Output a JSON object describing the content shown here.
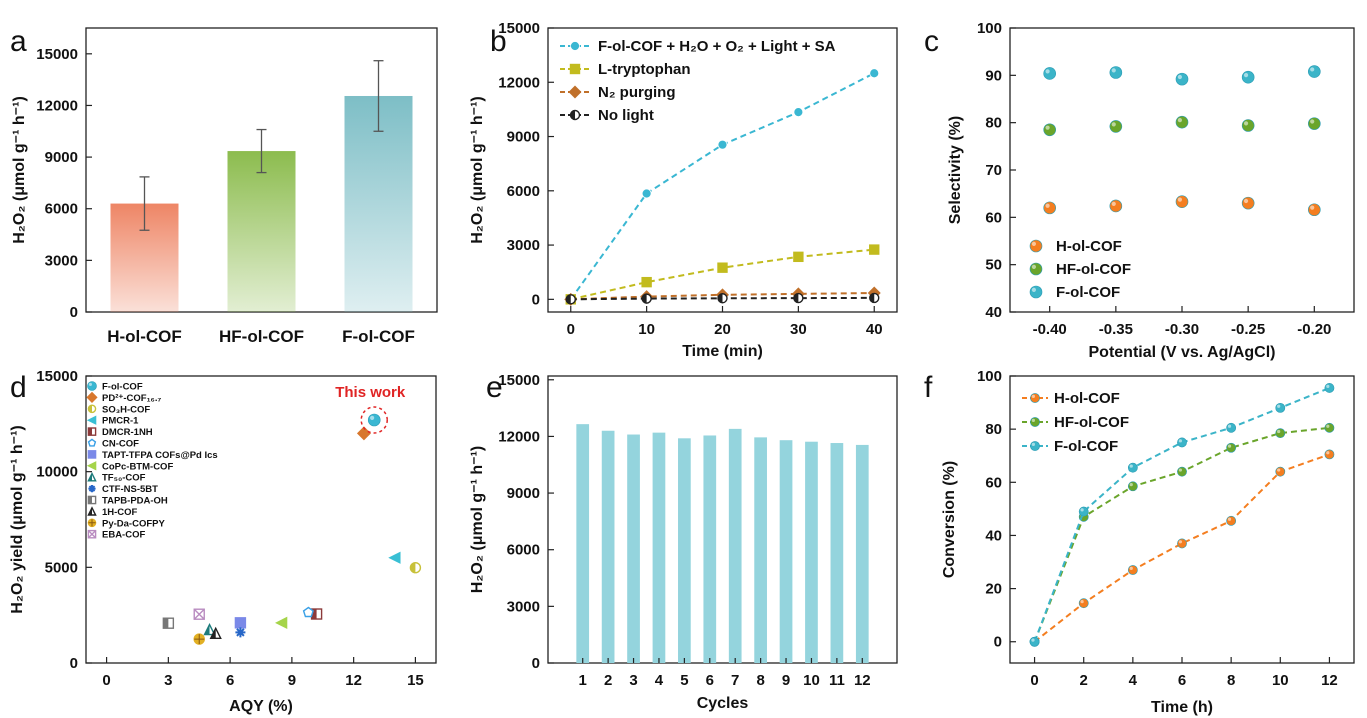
{
  "chart_data": [
    {
      "panel": "a",
      "type": "bar",
      "ylabel": "H₂O₂ (μmol g⁻¹ h⁻¹)",
      "categories": [
        "H-ol-COF",
        "HF-ol-COF",
        "F-ol-COF"
      ],
      "values": [
        6300,
        9350,
        12550
      ],
      "errors": [
        1550,
        1250,
        2050
      ],
      "colors": [
        "#ee8565",
        "#8cbc4e",
        "#7dbec6"
      ],
      "ylim": [
        0,
        16500
      ],
      "yticks": [
        0,
        3000,
        6000,
        9000,
        12000,
        15000
      ]
    },
    {
      "panel": "b",
      "type": "line",
      "xlabel": "Time (min)",
      "ylabel": "H₂O₂ (μmol g⁻¹ h⁻¹)",
      "x": [
        0,
        10,
        20,
        30,
        40
      ],
      "xlim": [
        -3,
        43
      ],
      "ylim": [
        -700,
        15000
      ],
      "xticks": [
        0,
        10,
        20,
        30,
        40
      ],
      "yticks": [
        0,
        3000,
        6000,
        9000,
        12000,
        15000
      ],
      "legend_position": "top-left",
      "series": [
        {
          "name": "F-ol-COF + H₂O + O₂ + Light + SA",
          "values": [
            0,
            5850,
            8550,
            10350,
            12500
          ],
          "color": "#3ab7d2",
          "marker": "circle"
        },
        {
          "name": "L-tryptophan",
          "values": [
            0,
            950,
            1750,
            2350,
            2750
          ],
          "color": "#c2bb1e",
          "marker": "square"
        },
        {
          "name": "N₂ purging",
          "values": [
            0,
            150,
            250,
            300,
            350
          ],
          "color": "#c0702a",
          "marker": "diamond"
        },
        {
          "name": "No light",
          "values": [
            0,
            40,
            60,
            70,
            80
          ],
          "color": "#222222",
          "marker": "half-circle"
        }
      ]
    },
    {
      "panel": "c",
      "type": "scatter",
      "xlabel": "Potential (V vs. Ag/AgCl)",
      "ylabel": "Selectivity (%)",
      "x": [
        -0.4,
        -0.35,
        -0.3,
        -0.25,
        -0.2
      ],
      "xlim": [
        -0.43,
        -0.17
      ],
      "ylim": [
        40,
        100
      ],
      "xticks": [
        -0.4,
        -0.35,
        -0.3,
        -0.25,
        -0.2
      ],
      "xticklabels": [
        "-0.40",
        "-0.35",
        "-0.30",
        "-0.25",
        "-0.20"
      ],
      "yticks": [
        40,
        50,
        60,
        70,
        80,
        90,
        100
      ],
      "legend_position": "bottom-left",
      "series": [
        {
          "name": "H-ol-COF",
          "values": [
            62.0,
            62.4,
            63.3,
            63.0,
            61.6
          ],
          "color": "#f47e20"
        },
        {
          "name": "HF-ol-COF",
          "values": [
            78.5,
            79.2,
            80.1,
            79.4,
            79.8
          ],
          "color": "#6aa52b"
        },
        {
          "name": "F-ol-COF",
          "values": [
            90.4,
            90.6,
            89.2,
            89.6,
            90.8
          ],
          "color": "#3bb4c8"
        }
      ]
    },
    {
      "panel": "d",
      "type": "scatter",
      "xlabel": "AQY (%)",
      "ylabel": "H₂O₂ yield (μmol g⁻¹ h⁻¹)",
      "xlim": [
        -1,
        16
      ],
      "ylim": [
        0,
        15000
      ],
      "xticks": [
        0,
        3,
        6,
        9,
        12,
        15
      ],
      "yticks": [
        0,
        5000,
        10000,
        15000
      ],
      "annotation": "This work",
      "legend_position": "top-left",
      "series": [
        {
          "name": "F-ol-COF",
          "x": 13.0,
          "y": 12700,
          "color": "#3ab7d2",
          "marker": "circle"
        },
        {
          "name": "PD²⁺-COF₁₆.₇",
          "x": 12.5,
          "y": 12000,
          "color": "#d8772d",
          "marker": "diamond"
        },
        {
          "name": "SO₃H-COF",
          "x": 15.0,
          "y": 4980,
          "color": "#c8c13a",
          "marker": "half-circle"
        },
        {
          "name": "PMCR-1",
          "x": 14.0,
          "y": 5500,
          "color": "#39bfd4",
          "marker": "left-triangle"
        },
        {
          "name": "DMCR-1NH",
          "x": 10.2,
          "y": 2560,
          "color": "#8c3a3a",
          "marker": "half-square"
        },
        {
          "name": "CN-COF",
          "x": 9.8,
          "y": 2640,
          "color": "#3aa0e6",
          "marker": "pentagon"
        },
        {
          "name": "TAPT-TFPA COFs@Pd Ics",
          "x": 6.5,
          "y": 2100,
          "color": "#7a89e8",
          "marker": "square"
        },
        {
          "name": "CoPc-BTM-COF",
          "x": 8.5,
          "y": 2100,
          "color": "#a5d44a",
          "marker": "left-triangle"
        },
        {
          "name": "TF₅₀-COF",
          "x": 5.0,
          "y": 1750,
          "color": "#1d7b7b",
          "marker": "half-triangle"
        },
        {
          "name": "CTF-NS-5BT",
          "x": 6.5,
          "y": 1600,
          "color": "#2767c8",
          "marker": "star"
        },
        {
          "name": "TAPB-PDA-OH",
          "x": 3.0,
          "y": 2080,
          "color": "#777777",
          "marker": "half-square"
        },
        {
          "name": "1H-COF",
          "x": 5.3,
          "y": 1550,
          "color": "#222222",
          "marker": "half-triangle"
        },
        {
          "name": "Py-Da-COFPY",
          "x": 4.5,
          "y": 1250,
          "color": "#e2b024",
          "marker": "crossed-circle"
        },
        {
          "name": "EBA-COF",
          "x": 4.5,
          "y": 2550,
          "color": "#b98cc0",
          "marker": "x-square"
        }
      ]
    },
    {
      "panel": "e",
      "type": "bar",
      "xlabel": "Cycles",
      "ylabel": "H₂O₂ (μmol g⁻¹ h⁻¹)",
      "categories": [
        "1",
        "2",
        "3",
        "4",
        "5",
        "6",
        "7",
        "8",
        "9",
        "10",
        "11",
        "12"
      ],
      "values": [
        12650,
        12300,
        12100,
        12200,
        11900,
        12050,
        12400,
        11950,
        11800,
        11720,
        11650,
        11550
      ],
      "color": "#94d4dd",
      "ylim": [
        0,
        15200
      ],
      "yticks": [
        0,
        3000,
        6000,
        9000,
        12000,
        15000
      ]
    },
    {
      "panel": "f",
      "type": "line",
      "xlabel": "Time (h)",
      "ylabel": "Conversion (%)",
      "x": [
        0,
        2,
        4,
        6,
        8,
        10,
        12
      ],
      "xlim": [
        -1,
        13
      ],
      "ylim": [
        -8,
        100
      ],
      "xticks": [
        0,
        2,
        4,
        6,
        8,
        10,
        12
      ],
      "yticks": [
        0,
        20,
        40,
        60,
        80,
        100
      ],
      "legend_position": "top-left",
      "series": [
        {
          "name": "H-ol-COF",
          "values": [
            0,
            14.5,
            27,
            37,
            45.5,
            64,
            70.5
          ],
          "color": "#f47e20"
        },
        {
          "name": "HF-ol-COF",
          "values": [
            0,
            47,
            58.5,
            64,
            73,
            78.5,
            80.5
          ],
          "color": "#6aa52b"
        },
        {
          "name": "F-ol-COF",
          "values": [
            0,
            49,
            65.5,
            75,
            80.5,
            88,
            95.5
          ],
          "color": "#3bb4c8"
        }
      ]
    }
  ]
}
